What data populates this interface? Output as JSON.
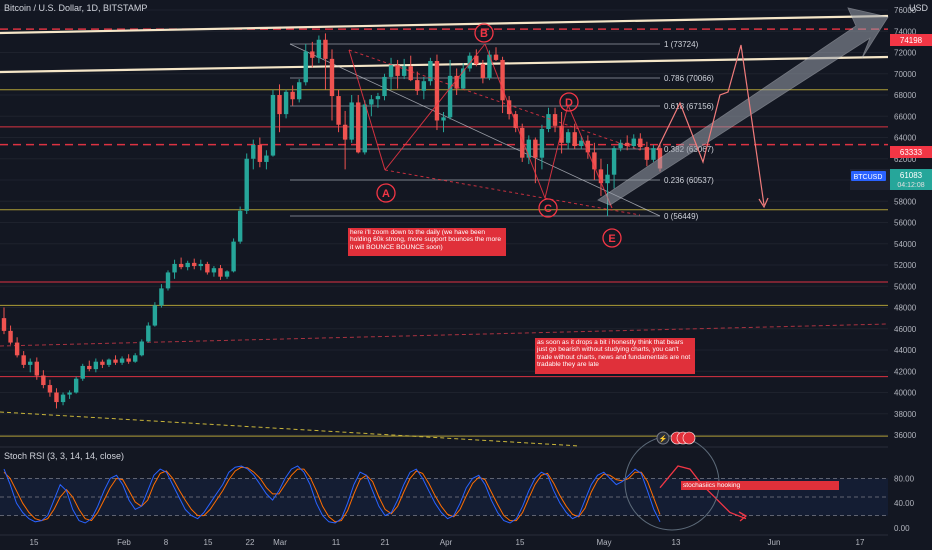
{
  "header": {
    "title": "Bitcoin / U.S. Dollar, 1D, BITSTAMP",
    "currency": "USD"
  },
  "rsi_header": {
    "title": "Stoch RSI (3, 3, 14, 14, close)"
  },
  "ticker": {
    "symbol": "BTCUSD",
    "price": "61083",
    "countdown": "04:12:08"
  },
  "price_tags": {
    "top": "74198",
    "mid": "63333"
  },
  "notes": {
    "n1": "here i'll zoom down to the daily (we have been holding 60k strong, more support bounces the more it will BOUNCE BOUNCE soon)",
    "n2": "as soon as it drops a bit i honestly think that bears just go bearish without studying charts, you can't trade without charts, news and fundamentals are not tradable they are late",
    "n3": "stochasiics hooking"
  },
  "colors": {
    "up": "#26a69a",
    "down": "#ef5350",
    "bg": "#131722",
    "red_line": "#f23645",
    "yellow": "#c9b53a",
    "rsi_k": "#2962ff",
    "rsi_d": "#ff6d00"
  },
  "chart_data": {
    "type": "candlestick",
    "y_axis": {
      "min": 36000,
      "max": 76000,
      "ticks": [
        36000,
        38000,
        40000,
        42000,
        44000,
        46000,
        48000,
        50000,
        52000,
        54000,
        56000,
        58000,
        60000,
        62000,
        64000,
        66000,
        68000,
        70000,
        72000,
        74000,
        76000
      ]
    },
    "x_ticks": [
      "15",
      "Feb",
      "8",
      "15",
      "22",
      "Mar",
      "11",
      "21",
      "Apr",
      "15",
      "May",
      "13",
      "Jun",
      "17"
    ],
    "fib_levels": [
      {
        "ratio": "1",
        "value": "(73724)"
      },
      {
        "ratio": "0.786",
        "value": "(70066)"
      },
      {
        "ratio": "0.618",
        "value": "(67156)"
      },
      {
        "ratio": "0.382",
        "value": "(63067)"
      },
      {
        "ratio": "0.236",
        "value": "(60537)"
      },
      {
        "ratio": "0",
        "value": "(56449)"
      }
    ],
    "pattern_labels": [
      "A",
      "B",
      "C",
      "D",
      "E"
    ],
    "horizontal_levels": {
      "red": [
        74198,
        65000,
        63333,
        50400,
        41500
      ],
      "yellow": [
        68500,
        57200,
        48200,
        35900
      ]
    },
    "candles": [
      [
        47000,
        48000,
        45500,
        45800
      ],
      [
        45800,
        46300,
        44500,
        44700
      ],
      [
        44700,
        45200,
        43300,
        43500
      ],
      [
        43500,
        43900,
        42300,
        42600
      ],
      [
        42600,
        43200,
        41900,
        42900
      ],
      [
        42900,
        43300,
        41200,
        41600
      ],
      [
        41600,
        42100,
        40400,
        40700
      ],
      [
        40700,
        41200,
        39600,
        40000
      ],
      [
        40000,
        40400,
        38500,
        39100
      ],
      [
        39100,
        40000,
        38800,
        39800
      ],
      [
        39800,
        40200,
        39400,
        40000
      ],
      [
        40000,
        41500,
        39900,
        41300
      ],
      [
        41300,
        42700,
        41100,
        42500
      ],
      [
        42500,
        43000,
        42000,
        42200
      ],
      [
        42200,
        43200,
        41900,
        42900
      ],
      [
        42900,
        43100,
        42300,
        42600
      ],
      [
        42600,
        43200,
        42400,
        43100
      ],
      [
        43100,
        43500,
        42600,
        42800
      ],
      [
        42800,
        43400,
        42600,
        43200
      ],
      [
        43200,
        43600,
        42700,
        42900
      ],
      [
        42900,
        43700,
        42800,
        43500
      ],
      [
        43500,
        45000,
        43400,
        44800
      ],
      [
        44800,
        46600,
        44700,
        46300
      ],
      [
        46300,
        48500,
        46200,
        48200
      ],
      [
        48200,
        50200,
        48000,
        49800
      ],
      [
        49800,
        51500,
        49600,
        51300
      ],
      [
        51300,
        52500,
        50700,
        52100
      ],
      [
        52100,
        52700,
        51600,
        51800
      ],
      [
        51800,
        52400,
        51500,
        52200
      ],
      [
        52200,
        52600,
        51600,
        51900
      ],
      [
        51900,
        52500,
        51500,
        52100
      ],
      [
        52100,
        52300,
        51100,
        51300
      ],
      [
        51300,
        51900,
        50900,
        51700
      ],
      [
        51700,
        52000,
        50600,
        50900
      ],
      [
        50900,
        51500,
        50700,
        51400
      ],
      [
        51400,
        54500,
        51300,
        54200
      ],
      [
        54200,
        57500,
        54000,
        57100
      ],
      [
        57100,
        62500,
        56800,
        62000
      ],
      [
        62000,
        63800,
        61000,
        63300
      ],
      [
        63300,
        64000,
        61200,
        61700
      ],
      [
        61700,
        62800,
        61000,
        62300
      ],
      [
        62300,
        68500,
        62200,
        68000
      ],
      [
        68000,
        69000,
        64500,
        66200
      ],
      [
        66200,
        68500,
        65800,
        68300
      ],
      [
        68300,
        68900,
        67000,
        67600
      ],
      [
        67600,
        69500,
        67300,
        69200
      ],
      [
        69200,
        72800,
        68900,
        72100
      ],
      [
        72100,
        73000,
        70600,
        71500
      ],
      [
        71500,
        73600,
        71000,
        73200
      ],
      [
        73200,
        73800,
        68500,
        71400
      ],
      [
        71400,
        72300,
        65600,
        67900
      ],
      [
        67900,
        68500,
        64500,
        65200
      ],
      [
        65200,
        66500,
        61000,
        63800
      ],
      [
        63800,
        68000,
        63500,
        67300
      ],
      [
        67300,
        68000,
        62500,
        62600
      ],
      [
        62600,
        67500,
        62400,
        67100
      ],
      [
        67100,
        68000,
        66000,
        67600
      ],
      [
        67600,
        68200,
        66800,
        67900
      ],
      [
        67900,
        70000,
        67500,
        69700
      ],
      [
        69700,
        71500,
        68500,
        70800
      ],
      [
        70800,
        71300,
        68600,
        69800
      ],
      [
        69800,
        71400,
        69500,
        70700
      ],
      [
        70700,
        71700,
        69300,
        69400
      ],
      [
        69400,
        70200,
        68000,
        68400
      ],
      [
        68400,
        69700,
        67600,
        69300
      ],
      [
        69300,
        71500,
        68900,
        71200
      ],
      [
        71200,
        71800,
        64700,
        65600
      ],
      [
        65600,
        66400,
        64500,
        65900
      ],
      [
        65900,
        71300,
        65700,
        69800
      ],
      [
        69800,
        70500,
        68000,
        68600
      ],
      [
        68600,
        71000,
        68500,
        70500
      ],
      [
        70500,
        72000,
        70200,
        71700
      ],
      [
        71700,
        72300,
        70700,
        70900
      ],
      [
        70900,
        71300,
        69100,
        69600
      ],
      [
        69600,
        72200,
        69400,
        71800
      ],
      [
        71800,
        72500,
        71200,
        71300
      ],
      [
        71300,
        71600,
        66300,
        67500
      ],
      [
        67500,
        67900,
        65700,
        66200
      ],
      [
        66200,
        66500,
        64500,
        64900
      ],
      [
        64900,
        65300,
        61700,
        62100
      ],
      [
        62100,
        64200,
        61500,
        63800
      ],
      [
        63800,
        64000,
        59700,
        62100
      ],
      [
        62100,
        65200,
        61000,
        64800
      ],
      [
        64800,
        66800,
        64500,
        66200
      ],
      [
        66200,
        66800,
        64500,
        65100
      ],
      [
        65100,
        66400,
        62500,
        63500
      ],
      [
        63500,
        64800,
        62900,
        64500
      ],
      [
        64500,
        65300,
        62900,
        63200
      ],
      [
        63200,
        64100,
        62900,
        63700
      ],
      [
        63700,
        64200,
        62000,
        62600
      ],
      [
        62600,
        63500,
        60000,
        61000
      ],
      [
        61000,
        62000,
        58500,
        59700
      ],
      [
        59700,
        61500,
        56600,
        60500
      ],
      [
        60500,
        63200,
        59200,
        63000
      ],
      [
        63000,
        63800,
        62700,
        63500
      ],
      [
        63500,
        64200,
        62800,
        63200
      ],
      [
        63200,
        64300,
        62900,
        63900
      ],
      [
        63900,
        64400,
        62800,
        63100
      ],
      [
        63100,
        63600,
        61300,
        61900
      ],
      [
        61900,
        63300,
        61700,
        63000
      ],
      [
        63000,
        63500,
        60800,
        61083
      ]
    ],
    "projection": [
      [
        63000,
        "C1"
      ],
      [
        66500,
        "C2"
      ],
      [
        64500,
        "C3"
      ],
      [
        73500,
        "C4"
      ],
      [
        59000,
        "C5"
      ]
    ],
    "stoch_rsi": {
      "ticks": [
        "80.00",
        "40.00",
        "0.00"
      ],
      "k": [
        95,
        70,
        40,
        25,
        15,
        10,
        12,
        20,
        45,
        70,
        60,
        30,
        12,
        8,
        15,
        35,
        60,
        80,
        85,
        70,
        45,
        30,
        35,
        60,
        85,
        95,
        90,
        70,
        50,
        30,
        20,
        15,
        25,
        40,
        55,
        70,
        90,
        98,
        100,
        95,
        85,
        70,
        55,
        45,
        60,
        80,
        95,
        100,
        90,
        70,
        40,
        20,
        10,
        8,
        15,
        40,
        70,
        90,
        85,
        60,
        35,
        20,
        25,
        45,
        70,
        90,
        95,
        80,
        60,
        40,
        25,
        15,
        20,
        40,
        65,
        80,
        85,
        70,
        45,
        25,
        12,
        8,
        15,
        35,
        60,
        80,
        90,
        85,
        60,
        40,
        25,
        15,
        20,
        45,
        70,
        85,
        90,
        80,
        70,
        75,
        85,
        95,
        88,
        60,
        30,
        10
      ],
      "d": [
        90,
        80,
        60,
        40,
        25,
        15,
        12,
        15,
        30,
        50,
        62,
        50,
        30,
        15,
        12,
        25,
        45,
        65,
        80,
        78,
        60,
        42,
        35,
        45,
        70,
        88,
        92,
        80,
        62,
        45,
        30,
        20,
        20,
        30,
        45,
        60,
        78,
        92,
        98,
        97,
        90,
        80,
        65,
        55,
        55,
        70,
        85,
        95,
        95,
        82,
        60,
        35,
        18,
        10,
        12,
        28,
        55,
        78,
        85,
        75,
        50,
        30,
        23,
        35,
        58,
        80,
        92,
        88,
        72,
        52,
        35,
        22,
        18,
        30,
        52,
        72,
        82,
        78,
        58,
        38,
        20,
        12,
        12,
        25,
        48,
        70,
        85,
        88,
        72,
        52,
        35,
        22,
        18,
        32,
        58,
        77,
        87,
        85,
        78,
        76,
        80,
        90,
        90,
        75,
        48,
        22
      ],
      "projection": [
        65,
        100,
        95,
        70,
        25,
        15
      ]
    }
  }
}
